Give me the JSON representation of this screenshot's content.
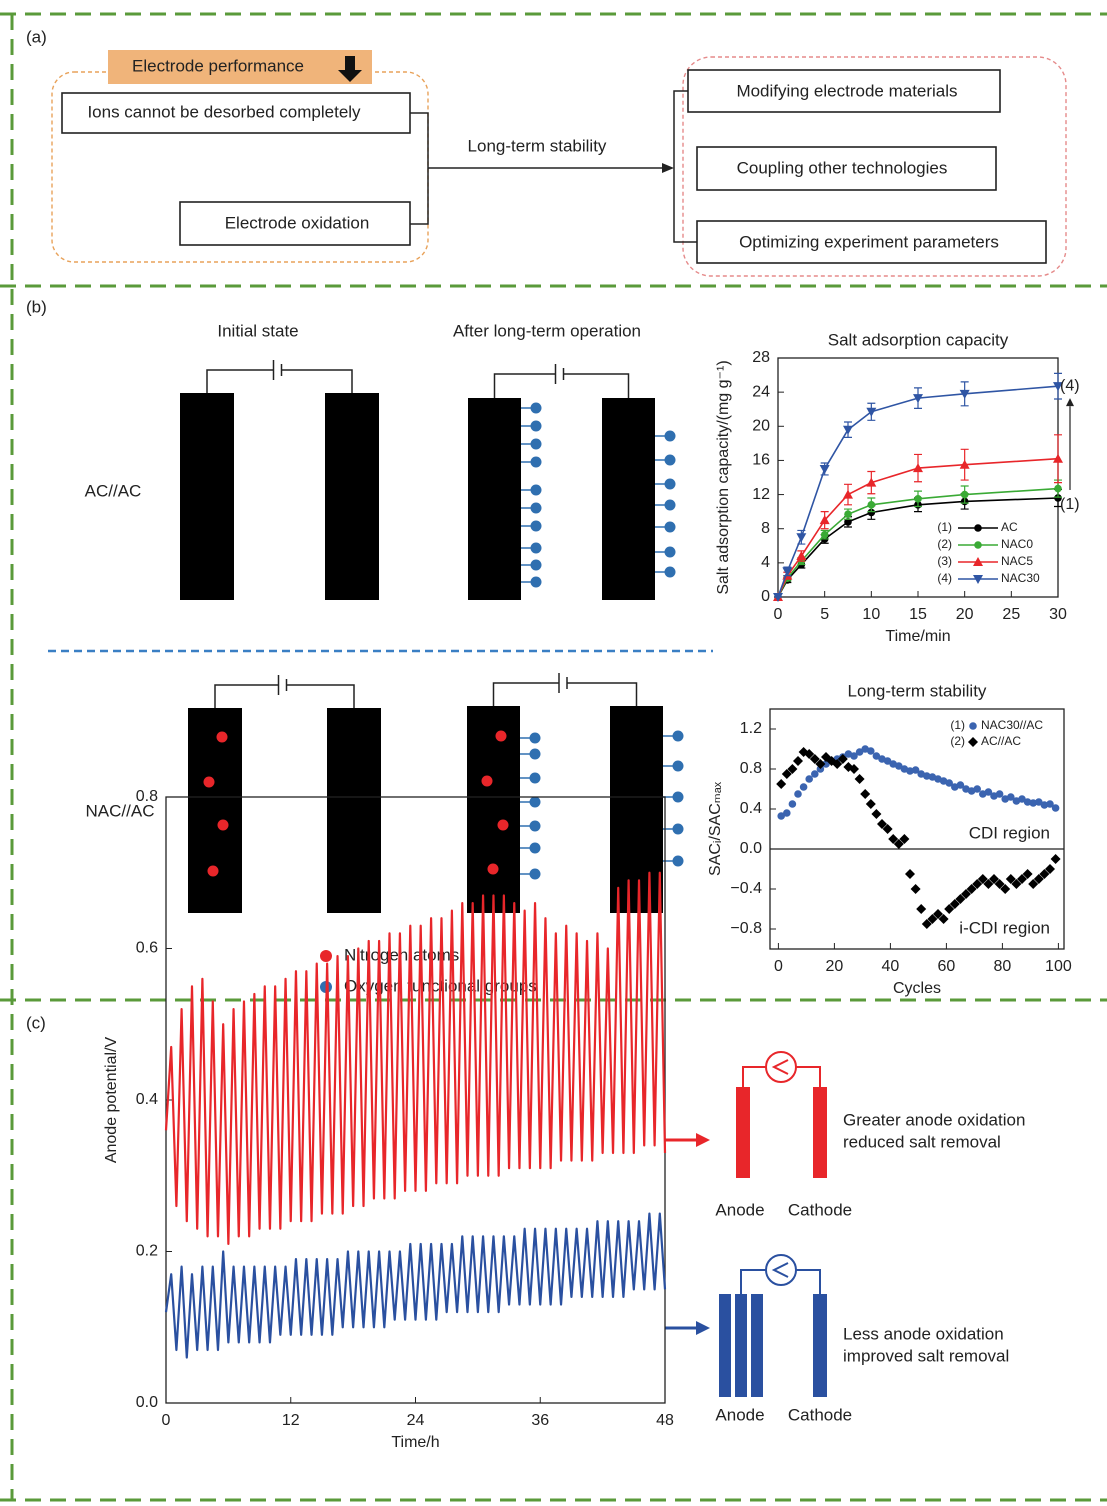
{
  "panel_a": {
    "label": "(a)",
    "header": "Electrode performance",
    "problems": [
      "Ions cannot be desorbed completely",
      "Electrode oxidation"
    ],
    "arrow_label": "Long-term stability",
    "strategies": [
      "Modifying electrode materials",
      "Coupling other technologies",
      "Optimizing experiment parameters"
    ]
  },
  "panel_b": {
    "label": "(b)",
    "states": [
      "Initial state",
      "After long-term operation"
    ],
    "configurations": [
      "AC//AC",
      "NAC//AC"
    ],
    "legend": [
      "Nitrogen atoms",
      "Oxygen functional groups"
    ]
  },
  "panel_c": {
    "label": "(c)",
    "outcomes": [
      [
        "Greater anode oxidation",
        "reduced salt removal"
      ],
      [
        "Less anode oxidation",
        "improved salt removal"
      ]
    ],
    "electrodes": [
      "Anode",
      "Cathode"
    ]
  },
  "chart_data": [
    {
      "type": "line",
      "title": "Salt adsorption capacity",
      "xlabel": "Time/min",
      "ylabel": "Salt adsorption capacity/(mg g⁻¹)",
      "x": [
        0,
        1,
        2.5,
        5,
        7.5,
        10,
        15,
        20,
        30
      ],
      "xlim": [
        0,
        30
      ],
      "xticks": [
        0,
        5,
        10,
        15,
        20,
        25,
        30
      ],
      "ylim": [
        0,
        28
      ],
      "yticks": [
        0,
        4,
        8,
        12,
        16,
        20,
        24,
        28
      ],
      "series": [
        {
          "label": "(1)",
          "name": "AC",
          "color": "#000000",
          "marker": "circle",
          "values": [
            0,
            2,
            3.8,
            6.8,
            8.8,
            9.9,
            10.8,
            11.2,
            11.6
          ],
          "errors": [
            0,
            0.3,
            0.4,
            0.5,
            0.6,
            0.8,
            0.8,
            0.9,
            1.0
          ]
        },
        {
          "label": "(2)",
          "name": "NAC0",
          "color": "#3aaa35",
          "marker": "circle",
          "values": [
            0,
            2.2,
            4.2,
            7.3,
            9.7,
            10.8,
            11.5,
            12,
            12.7
          ],
          "errors": [
            0,
            0.3,
            0.4,
            0.5,
            0.6,
            0.8,
            0.9,
            1.0,
            1.0
          ]
        },
        {
          "label": "(3)",
          "name": "NAC5",
          "color": "#e8262a",
          "marker": "triangle-up",
          "values": [
            0,
            2.5,
            4.8,
            9,
            12,
            13.4,
            15.1,
            15.5,
            16.2
          ],
          "errors": [
            0,
            0.4,
            0.6,
            1.0,
            1.2,
            1.3,
            1.6,
            1.8,
            2.8
          ]
        },
        {
          "label": "(4)",
          "name": "NAC30",
          "color": "#2f55a4",
          "marker": "triangle-down",
          "values": [
            0,
            3,
            7,
            15,
            19.6,
            21.7,
            23.3,
            23.8,
            24.7
          ],
          "errors": [
            0,
            0.5,
            0.8,
            0.7,
            0.9,
            1.0,
            1.2,
            1.4,
            1.5
          ]
        }
      ]
    },
    {
      "type": "scatter",
      "title": "Long-term stability",
      "xlabel": "Cycles",
      "ylabel": "SACᵢ/SACₘₐₓ",
      "annotations": [
        "CDI region",
        "i-CDI region"
      ],
      "zero_line": true,
      "x": [
        1,
        3,
        5,
        7,
        9,
        11,
        13,
        15,
        17,
        19,
        21,
        23,
        25,
        27,
        29,
        31,
        33,
        35,
        37,
        39,
        41,
        43,
        45,
        47,
        49,
        51,
        53,
        55,
        57,
        59,
        61,
        63,
        65,
        67,
        69,
        71,
        73,
        75,
        77,
        79,
        81,
        83,
        85,
        87,
        89,
        91,
        93,
        95,
        97,
        99
      ],
      "xlim": [
        -3,
        102
      ],
      "xticks": [
        0,
        20,
        40,
        60,
        80,
        100
      ],
      "ylim": [
        -1,
        1.4
      ],
      "yticks": [
        {
          "value": -0.8,
          "label": "−0.8"
        },
        {
          "value": -0.4,
          "label": "−0.4"
        },
        {
          "value": 0,
          "label": "0.0"
        },
        0.4,
        0.8,
        1.2
      ],
      "series": [
        {
          "label": "(1)",
          "name": "NAC30//AC",
          "color": "#3b64b0",
          "marker": "circle",
          "values": [
            0.33,
            0.36,
            0.45,
            0.55,
            0.62,
            0.7,
            0.75,
            0.8,
            0.85,
            0.88,
            0.9,
            0.92,
            0.95,
            0.93,
            0.97,
            1.0,
            0.98,
            0.93,
            0.9,
            0.88,
            0.85,
            0.83,
            0.8,
            0.78,
            0.79,
            0.75,
            0.73,
            0.72,
            0.7,
            0.68,
            0.66,
            0.62,
            0.64,
            0.6,
            0.58,
            0.6,
            0.55,
            0.57,
            0.53,
            0.55,
            0.5,
            0.52,
            0.48,
            0.5,
            0.47,
            0.46,
            0.47,
            0.44,
            0.45,
            0.41
          ]
        },
        {
          "label": "(2)",
          "name": "AC//AC",
          "color": "#000000",
          "marker": "diamond",
          "values": [
            0.65,
            0.75,
            0.8,
            0.88,
            0.97,
            0.95,
            0.9,
            0.85,
            0.92,
            0.88,
            0.85,
            0.9,
            0.82,
            0.8,
            0.7,
            0.55,
            0.45,
            0.35,
            0.25,
            0.2,
            0.1,
            0.05,
            0.1,
            -0.25,
            -0.4,
            -0.6,
            -0.75,
            -0.7,
            -0.65,
            -0.7,
            -0.6,
            -0.55,
            -0.5,
            -0.45,
            -0.4,
            -0.35,
            -0.3,
            -0.35,
            -0.3,
            -0.35,
            -0.4,
            -0.3,
            -0.35,
            -0.3,
            -0.25,
            -0.35,
            -0.3,
            -0.25,
            -0.2,
            -0.1
          ]
        }
      ]
    },
    {
      "type": "line",
      "xlabel": "Time/h",
      "ylabel": "Anode potential/V",
      "x": [
        0,
        0.5,
        1,
        1.5,
        2,
        2.5,
        3,
        3.5,
        4,
        4.5,
        5,
        5.5,
        6,
        6.5,
        7,
        7.5,
        8,
        8.5,
        9,
        9.5,
        10,
        10.5,
        11,
        11.5,
        12,
        12.5,
        13,
        13.5,
        14,
        14.5,
        15,
        15.5,
        16,
        16.5,
        17,
        17.5,
        18,
        18.5,
        19,
        19.5,
        20,
        20.5,
        21,
        21.5,
        22,
        22.5,
        23,
        23.5,
        24,
        24.5,
        25,
        25.5,
        26,
        26.5,
        27,
        27.5,
        28,
        28.5,
        29,
        29.5,
        30,
        30.5,
        31,
        31.5,
        32,
        32.5,
        33,
        33.5,
        34,
        34.5,
        35,
        35.5,
        36,
        36.5,
        37,
        37.5,
        38,
        38.5,
        39,
        39.5,
        40,
        40.5,
        41,
        41.5,
        42,
        42.5,
        43,
        43.5,
        44,
        44.5,
        45,
        45.5,
        46,
        46.5,
        47,
        47.5,
        48
      ],
      "xlim": [
        0,
        48
      ],
      "xticks": [
        0,
        12,
        24,
        36,
        48
      ],
      "ylim": [
        0,
        0.8
      ],
      "yticks": [
        {
          "value": 0,
          "label": "0.0"
        },
        0.2,
        0.4,
        0.6,
        0.8
      ],
      "series": [
        {
          "color": "#e8262a",
          "values": [
            0.36,
            0.47,
            0.26,
            0.52,
            0.24,
            0.55,
            0.23,
            0.56,
            0.22,
            0.53,
            0.22,
            0.5,
            0.21,
            0.52,
            0.22,
            0.53,
            0.22,
            0.54,
            0.23,
            0.55,
            0.23,
            0.55,
            0.23,
            0.56,
            0.24,
            0.57,
            0.24,
            0.57,
            0.24,
            0.58,
            0.25,
            0.58,
            0.25,
            0.59,
            0.25,
            0.59,
            0.26,
            0.6,
            0.26,
            0.61,
            0.27,
            0.61,
            0.27,
            0.62,
            0.27,
            0.62,
            0.28,
            0.63,
            0.28,
            0.63,
            0.28,
            0.64,
            0.29,
            0.64,
            0.29,
            0.65,
            0.29,
            0.66,
            0.3,
            0.66,
            0.3,
            0.67,
            0.3,
            0.67,
            0.3,
            0.67,
            0.31,
            0.66,
            0.31,
            0.65,
            0.31,
            0.66,
            0.31,
            0.64,
            0.31,
            0.62,
            0.32,
            0.63,
            0.32,
            0.62,
            0.32,
            0.61,
            0.32,
            0.62,
            0.33,
            0.6,
            0.33,
            0.68,
            0.33,
            0.69,
            0.33,
            0.69,
            0.34,
            0.7,
            0.34,
            0.7,
            0.33
          ]
        },
        {
          "color": "#2a50a0",
          "values": [
            0.12,
            0.17,
            0.07,
            0.18,
            0.06,
            0.17,
            0.07,
            0.18,
            0.07,
            0.18,
            0.07,
            0.2,
            0.08,
            0.18,
            0.08,
            0.18,
            0.08,
            0.18,
            0.08,
            0.18,
            0.08,
            0.18,
            0.09,
            0.18,
            0.09,
            0.19,
            0.09,
            0.19,
            0.09,
            0.19,
            0.09,
            0.19,
            0.09,
            0.19,
            0.1,
            0.2,
            0.1,
            0.2,
            0.1,
            0.2,
            0.1,
            0.2,
            0.1,
            0.2,
            0.11,
            0.2,
            0.11,
            0.21,
            0.11,
            0.21,
            0.11,
            0.21,
            0.11,
            0.21,
            0.12,
            0.21,
            0.12,
            0.22,
            0.12,
            0.22,
            0.12,
            0.22,
            0.12,
            0.22,
            0.12,
            0.22,
            0.13,
            0.22,
            0.13,
            0.23,
            0.13,
            0.23,
            0.13,
            0.23,
            0.13,
            0.23,
            0.13,
            0.23,
            0.14,
            0.23,
            0.14,
            0.23,
            0.14,
            0.24,
            0.14,
            0.24,
            0.14,
            0.24,
            0.14,
            0.24,
            0.15,
            0.24,
            0.15,
            0.25,
            0.15,
            0.25,
            0.15
          ]
        }
      ]
    }
  ]
}
